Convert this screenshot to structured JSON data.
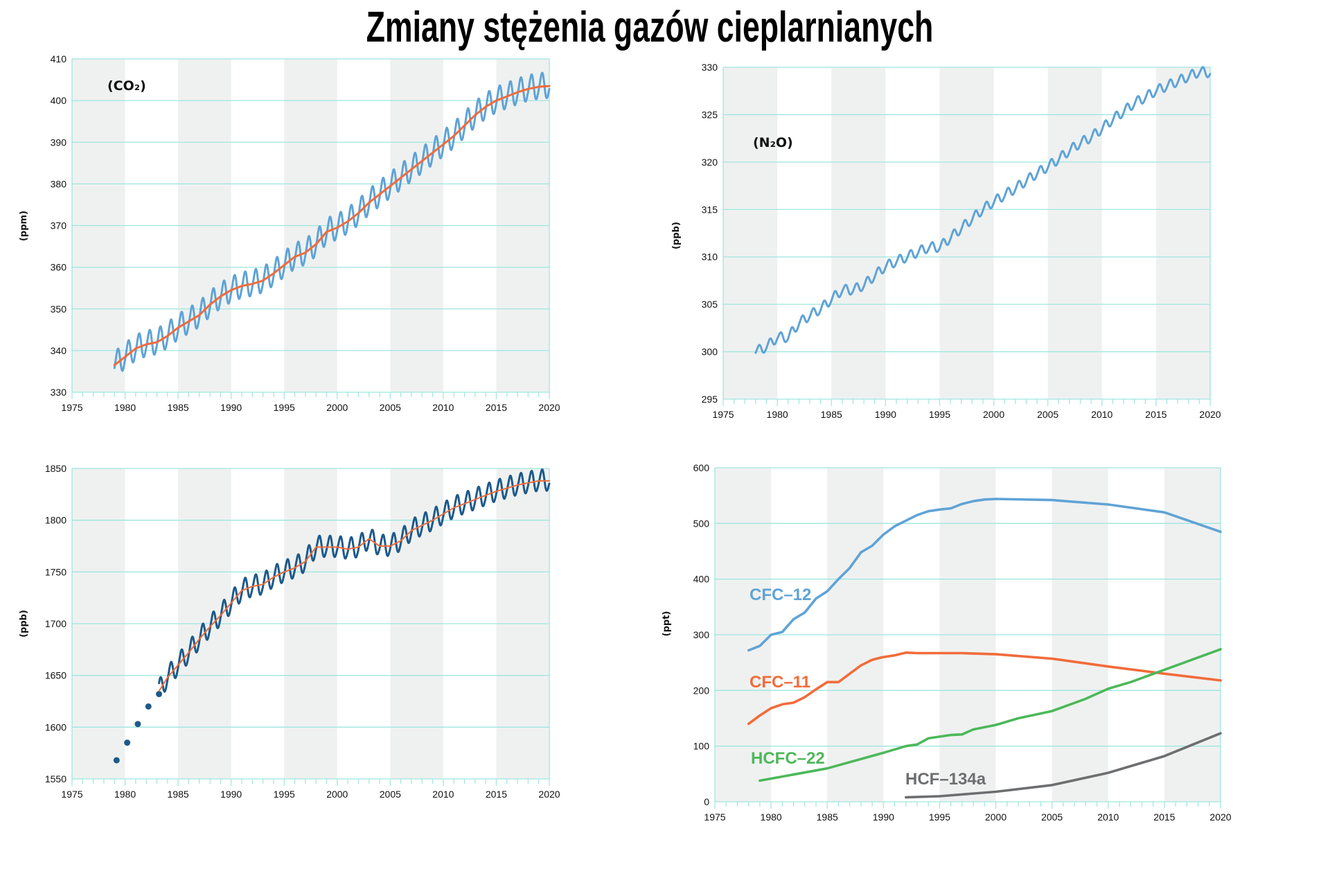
{
  "title": "Zmiany stężenia gazów cieplarnianych",
  "colors": {
    "grid": "#9ee6df",
    "band": "#eff1f0",
    "co2": "#5fa3d6",
    "trend": "#f26b3a",
    "ch4": "#1d5a8a",
    "cfc12": "#5fa3d6",
    "cfc11": "#f26b3a",
    "hcfc22": "#4cb85a",
    "hcf134a": "#6d6e70"
  },
  "chart_data": [
    {
      "type": "line",
      "label": "(CO₂)",
      "ylabel": "(ppm)",
      "xlim": [
        1975,
        2020
      ],
      "ylim": [
        330,
        410
      ],
      "xticks": [
        "1975",
        "1980",
        "1985",
        "1990",
        "1995",
        "2000",
        "2005",
        "2010",
        "2015",
        "2020"
      ],
      "yticks": [
        "330",
        "340",
        "350",
        "360",
        "370",
        "380",
        "390",
        "400",
        "410"
      ],
      "grid": true,
      "series": [
        {
          "kind": "seasonal",
          "color": "#5fa3d6",
          "seasonal_amplitude": 3,
          "x": [
            1979,
            1980,
            1981,
            1982,
            1983,
            1984,
            1985,
            1986,
            1987,
            1988,
            1989,
            1990,
            1991,
            1992,
            1993,
            1994,
            1995,
            1996,
            1997,
            1998,
            1999,
            2000,
            2001,
            2002,
            2003,
            2004,
            2005,
            2006,
            2007,
            2008,
            2009,
            2010,
            2011,
            2012,
            2013,
            2014,
            2015,
            2016,
            2017,
            2018,
            2019,
            2020
          ],
          "y": [
            336.5,
            338.5,
            340.5,
            341.5,
            342,
            343.5,
            345.5,
            347,
            348.5,
            351,
            353,
            354.5,
            355.5,
            356,
            356.8,
            358.5,
            360.5,
            362.5,
            363.5,
            365.5,
            368.5,
            369.5,
            371,
            373,
            375.5,
            377.5,
            379.5,
            381.5,
            383.5,
            385.5,
            387.5,
            389.5,
            391.5,
            394,
            396.5,
            398.5,
            400,
            401,
            402,
            402.8,
            403.3,
            403.5
          ]
        },
        {
          "kind": "trend",
          "color": "#f26b3a",
          "x": [
            1979,
            1980,
            1981,
            1982,
            1983,
            1984,
            1985,
            1986,
            1987,
            1988,
            1989,
            1990,
            1991,
            1992,
            1993,
            1994,
            1995,
            1996,
            1997,
            1998,
            1999,
            2000,
            2001,
            2002,
            2003,
            2004,
            2005,
            2006,
            2007,
            2008,
            2009,
            2010,
            2011,
            2012,
            2013,
            2014,
            2015,
            2016,
            2017,
            2018,
            2019,
            2020
          ],
          "y": [
            336.5,
            338.5,
            340.5,
            341.5,
            342,
            343.5,
            345.5,
            347,
            348.5,
            351,
            353,
            354.5,
            355.5,
            356,
            356.8,
            358.5,
            360.5,
            362.5,
            363.5,
            365.5,
            368.5,
            369.5,
            371,
            373,
            375.5,
            377.5,
            379.5,
            381.5,
            383.5,
            385.5,
            387.5,
            389.5,
            391.5,
            394,
            396.5,
            398.5,
            400,
            401,
            402,
            402.8,
            403.3,
            403.5
          ]
        }
      ]
    },
    {
      "type": "line",
      "label": "(N₂O)",
      "ylabel": "(ppb)",
      "xlim": [
        1975,
        2020
      ],
      "ylim": [
        295,
        330
      ],
      "xticks": [
        "1975",
        "1980",
        "1985",
        "1990",
        "1995",
        "2000",
        "2005",
        "2010",
        "2015",
        "2020"
      ],
      "yticks": [
        "295",
        "300",
        "305",
        "310",
        "315",
        "320",
        "325",
        "330"
      ],
      "grid": true,
      "series": [
        {
          "kind": "seasonal",
          "color": "#5fa3d6",
          "seasonal_amplitude": 0.5,
          "x": [
            1978,
            1979,
            1980,
            1981,
            1982,
            1983,
            1984,
            1985,
            1986,
            1987,
            1988,
            1989,
            1990,
            1991,
            1992,
            1993,
            1994,
            1995,
            1996,
            1997,
            1998,
            1999,
            2000,
            2001,
            2002,
            2003,
            2004,
            2005,
            2006,
            2007,
            2008,
            2009,
            2010,
            2011,
            2012,
            2013,
            2014,
            2015,
            2016,
            2017,
            2018,
            2019,
            2020
          ],
          "y": [
            300,
            300.5,
            301.5,
            301.5,
            303,
            303.8,
            304.5,
            305.5,
            306.5,
            306.5,
            307,
            308,
            309,
            309.5,
            310,
            310.5,
            311,
            311,
            312,
            313,
            314,
            315,
            315.8,
            316.5,
            317.2,
            318,
            318.8,
            319.5,
            320.3,
            321.2,
            322,
            322.6,
            323.5,
            324.5,
            325.3,
            326.2,
            326.8,
            327.5,
            328,
            328.5,
            329,
            329.5,
            329.4
          ]
        }
      ]
    },
    {
      "type": "line",
      "label": "",
      "ylabel": "(ppb)",
      "xlim": [
        1975,
        2020
      ],
      "ylim": [
        1550,
        1850
      ],
      "xticks": [
        "1975",
        "1980",
        "1985",
        "1990",
        "1995",
        "2000",
        "2005",
        "2010",
        "2015",
        "2020"
      ],
      "yticks": [
        "1550",
        "1600",
        "1650",
        "1700",
        "1750",
        "1800",
        "1850"
      ],
      "grid": true,
      "series": [
        {
          "kind": "points",
          "color": "#1d5a8a",
          "x": [
            1979.2,
            1980.2,
            1981.2,
            1982.2,
            1983.2
          ],
          "y": [
            1568,
            1585,
            1603,
            1620,
            1632
          ]
        },
        {
          "kind": "seasonal",
          "color": "#1d5a8a",
          "seasonal_amplitude": 10,
          "x": [
            1983.2,
            1984,
            1985,
            1986,
            1987,
            1988,
            1989,
            1990,
            1991,
            1992,
            1993,
            1994,
            1995,
            1996,
            1997,
            1998,
            1999,
            2000,
            2001,
            2002,
            2003,
            2004,
            2005,
            2006,
            2007,
            2008,
            2009,
            2010,
            2011,
            2012,
            2013,
            2014,
            2015,
            2016,
            2017,
            2018,
            2019,
            2020
          ],
          "y": [
            1635,
            1648,
            1660,
            1672,
            1685,
            1697,
            1708,
            1720,
            1732,
            1736,
            1738,
            1745,
            1750,
            1754,
            1760,
            1774,
            1774,
            1774,
            1772,
            1774,
            1782,
            1775,
            1775,
            1780,
            1790,
            1795,
            1800,
            1806,
            1812,
            1816,
            1820,
            1824,
            1828,
            1831,
            1834,
            1836,
            1838,
            1838
          ]
        },
        {
          "kind": "trend",
          "color": "#f26b3a",
          "x": [
            1983.2,
            1984,
            1985,
            1986,
            1987,
            1988,
            1989,
            1990,
            1991,
            1992,
            1993,
            1994,
            1995,
            1996,
            1997,
            1998,
            1999,
            2000,
            2001,
            2002,
            2003,
            2004,
            2005,
            2006,
            2007,
            2008,
            2009,
            2010,
            2011,
            2012,
            2013,
            2014,
            2015,
            2016,
            2017,
            2018,
            2019,
            2020
          ],
          "y": [
            1635,
            1648,
            1660,
            1672,
            1685,
            1697,
            1708,
            1720,
            1732,
            1736,
            1738,
            1745,
            1750,
            1754,
            1760,
            1774,
            1774,
            1774,
            1772,
            1774,
            1782,
            1775,
            1775,
            1780,
            1790,
            1795,
            1800,
            1806,
            1812,
            1816,
            1820,
            1824,
            1828,
            1831,
            1834,
            1836,
            1838,
            1838
          ]
        }
      ]
    },
    {
      "type": "line",
      "label": "",
      "ylabel": "(ppt)",
      "xlim": [
        1975,
        2020
      ],
      "ylim": [
        0,
        600
      ],
      "xticks": [
        "1975",
        "1980",
        "1985",
        "1990",
        "1995",
        "2000",
        "2005",
        "2010",
        "2015",
        "2020"
      ],
      "yticks": [
        "0",
        "100",
        "200",
        "300",
        "400",
        "500",
        "600"
      ],
      "grid": true,
      "series": [
        {
          "kind": "trend",
          "name": "CFC–12",
          "color": "#5fa3d6",
          "x": [
            1978,
            1979,
            1980,
            1981,
            1982,
            1983,
            1984,
            1985,
            1986,
            1987,
            1988,
            1989,
            1990,
            1991,
            1992,
            1993,
            1994,
            1995,
            1996,
            1997,
            1998,
            1999,
            2000,
            2005,
            2010,
            2015,
            2020
          ],
          "y": [
            272,
            280,
            300,
            305,
            328,
            340,
            365,
            378,
            400,
            420,
            448,
            460,
            480,
            495,
            505,
            515,
            522,
            525,
            527,
            535,
            540,
            543,
            544,
            542,
            534,
            520,
            485
          ]
        },
        {
          "kind": "trend",
          "name": "CFC–11",
          "color": "#f26b3a",
          "x": [
            1978,
            1979,
            1980,
            1981,
            1982,
            1983,
            1984,
            1985,
            1986,
            1987,
            1988,
            1989,
            1990,
            1991,
            1992,
            1993,
            1995,
            1997,
            2000,
            2005,
            2010,
            2015,
            2020
          ],
          "y": [
            140,
            155,
            168,
            175,
            178,
            188,
            202,
            215,
            215,
            230,
            245,
            255,
            260,
            263,
            268,
            267,
            267,
            267,
            265,
            257,
            243,
            230,
            218
          ]
        },
        {
          "kind": "trend",
          "name": "HCFC–22",
          "color": "#4cb85a",
          "x": [
            1979,
            1985,
            1990,
            1992,
            1993,
            1994,
            1996,
            1997,
            1998,
            2000,
            2002,
            2005,
            2008,
            2010,
            2012,
            2015,
            2020
          ],
          "y": [
            38,
            60,
            88,
            100,
            103,
            114,
            120,
            121,
            130,
            138,
            150,
            163,
            185,
            203,
            215,
            237,
            274
          ]
        },
        {
          "kind": "trend",
          "name": "HCF–134a",
          "color": "#6d6e70",
          "x": [
            1992,
            1995,
            2000,
            2005,
            2010,
            2015,
            2020
          ],
          "y": [
            8,
            10,
            18,
            30,
            52,
            82,
            123
          ]
        }
      ]
    }
  ]
}
